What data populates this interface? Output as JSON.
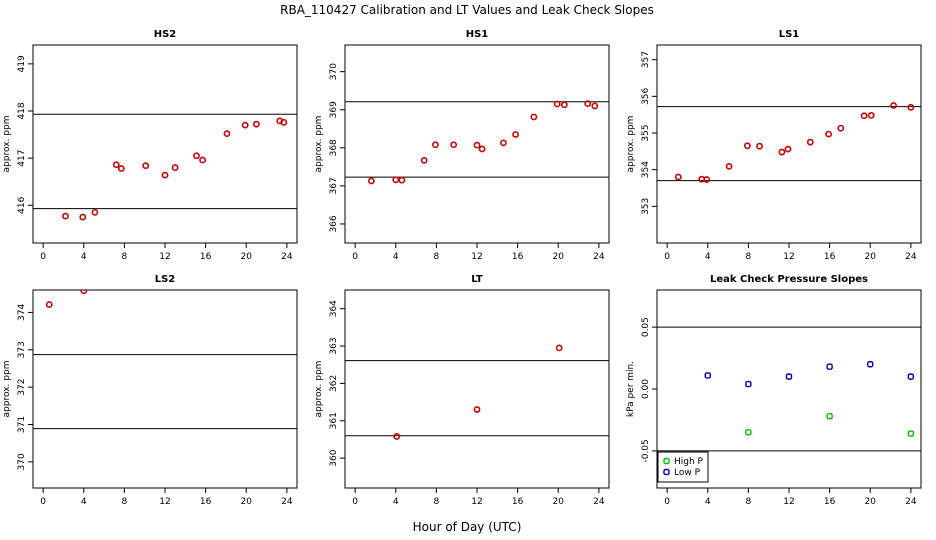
{
  "page_title": "RBA_110427  Calibration and LT Values and Leak Check Slopes",
  "x_axis_label": "Hour of Day (UTC)",
  "chart_data": [
    {
      "type": "scatter",
      "title": "HS2",
      "ylabel": "approx. ppm",
      "xlim": [
        -1,
        25
      ],
      "ylim": [
        415.2,
        419.4
      ],
      "xticks": [
        0,
        4,
        8,
        12,
        16,
        20,
        24
      ],
      "yticks": [
        415,
        416,
        417,
        418,
        419
      ],
      "hlines": [
        415.93,
        417.93
      ],
      "series": [
        {
          "name": "cal",
          "color": "#d00000",
          "x": [
            2.2,
            3.9,
            5.1,
            7.2,
            7.7,
            10.1,
            12.0,
            13.0,
            15.1,
            15.7,
            18.1,
            19.9,
            21.0,
            23.3,
            23.7
          ],
          "y": [
            415.77,
            415.75,
            415.85,
            416.86,
            416.78,
            416.84,
            416.64,
            416.8,
            417.05,
            416.96,
            417.52,
            417.7,
            417.72,
            417.79,
            417.76
          ]
        }
      ]
    },
    {
      "type": "scatter",
      "title": "HS1",
      "ylabel": "approx. ppm",
      "xlim": [
        -1,
        25
      ],
      "ylim": [
        365.5,
        370.7
      ],
      "xticks": [
        0,
        4,
        8,
        12,
        16,
        20,
        24
      ],
      "yticks": [
        366,
        367,
        368,
        369,
        370
      ],
      "hlines": [
        367.23,
        369.21
      ],
      "series": [
        {
          "name": "cal",
          "color": "#d00000",
          "x": [
            1.6,
            4.0,
            4.6,
            6.8,
            7.9,
            9.7,
            12.0,
            12.5,
            14.6,
            15.8,
            17.6,
            19.9,
            20.6,
            22.9,
            23.6
          ],
          "y": [
            367.13,
            367.16,
            367.15,
            367.67,
            368.08,
            368.08,
            368.07,
            367.97,
            368.13,
            368.35,
            368.81,
            369.15,
            369.13,
            369.16,
            369.1
          ]
        }
      ]
    },
    {
      "type": "scatter",
      "title": "LS1",
      "ylabel": "approx. ppm",
      "xlim": [
        -1,
        25
      ],
      "ylim": [
        352.0,
        357.4
      ],
      "xticks": [
        0,
        4,
        8,
        12,
        16,
        20,
        24
      ],
      "yticks": [
        353,
        354,
        355,
        356,
        357
      ],
      "hlines": [
        353.7,
        355.72
      ],
      "series": [
        {
          "name": "cal",
          "color": "#d00000",
          "x": [
            1.1,
            3.4,
            3.9,
            6.1,
            7.9,
            9.1,
            11.3,
            11.9,
            14.1,
            15.9,
            17.1,
            19.4,
            20.1,
            22.3,
            24.0
          ],
          "y": [
            353.8,
            353.74,
            353.73,
            354.09,
            354.65,
            354.64,
            354.48,
            354.56,
            354.75,
            354.97,
            355.13,
            355.47,
            355.48,
            355.75,
            355.7
          ]
        }
      ]
    },
    {
      "type": "scatter",
      "title": "LS2",
      "ylabel": "approx. ppm",
      "xlim": [
        -1,
        25
      ],
      "ylim": [
        369.3,
        374.6
      ],
      "xticks": [
        0,
        4,
        8,
        12,
        16,
        20,
        24
      ],
      "yticks": [
        370,
        371,
        372,
        373,
        374
      ],
      "hlines": [
        370.89,
        372.87
      ],
      "series": [
        {
          "name": "cal",
          "color": "#d00000",
          "x": [
            0.6,
            4.0
          ],
          "y": [
            374.21,
            374.58
          ]
        }
      ]
    },
    {
      "type": "scatter",
      "title": "LT",
      "ylabel": "approx. ppm",
      "xlim": [
        -1,
        25
      ],
      "ylim": [
        359.2,
        364.5
      ],
      "xticks": [
        0,
        4,
        8,
        12,
        16,
        20,
        24
      ],
      "yticks": [
        359,
        360,
        361,
        362,
        363,
        364
      ],
      "hlines": [
        360.6,
        362.61
      ],
      "series": [
        {
          "name": "LT",
          "color": "#d00000",
          "x": [
            4.1,
            12.0,
            20.1
          ],
          "y": [
            360.58,
            361.3,
            362.95
          ]
        }
      ]
    },
    {
      "type": "scatter",
      "title": "Leak Check Pressure Slopes",
      "ylabel": "kPa per min.",
      "xlim": [
        -1,
        25
      ],
      "ylim": [
        -0.08,
        0.08
      ],
      "xticks": [
        0,
        4,
        8,
        12,
        16,
        20,
        24
      ],
      "yticks": [
        -0.05,
        0.0,
        0.05
      ],
      "ytick_labels": [
        "-0.05",
        "0.00",
        "0.05"
      ],
      "hlines": [
        -0.05,
        0.05
      ],
      "legend": {
        "position": "bottom-left",
        "entries": [
          "High P",
          "Low P"
        ]
      },
      "series": [
        {
          "name": "High P",
          "color": "#00c000",
          "x": [
            8.0,
            16.0,
            24.0
          ],
          "y": [
            -0.035,
            -0.022,
            -0.036
          ]
        },
        {
          "name": "Low P",
          "color": "#0000c0",
          "x": [
            4.0,
            8.0,
            12.0,
            16.0,
            20.0,
            24.0
          ],
          "y": [
            0.011,
            0.004,
            0.01,
            0.018,
            0.02,
            0.01
          ]
        }
      ]
    }
  ]
}
